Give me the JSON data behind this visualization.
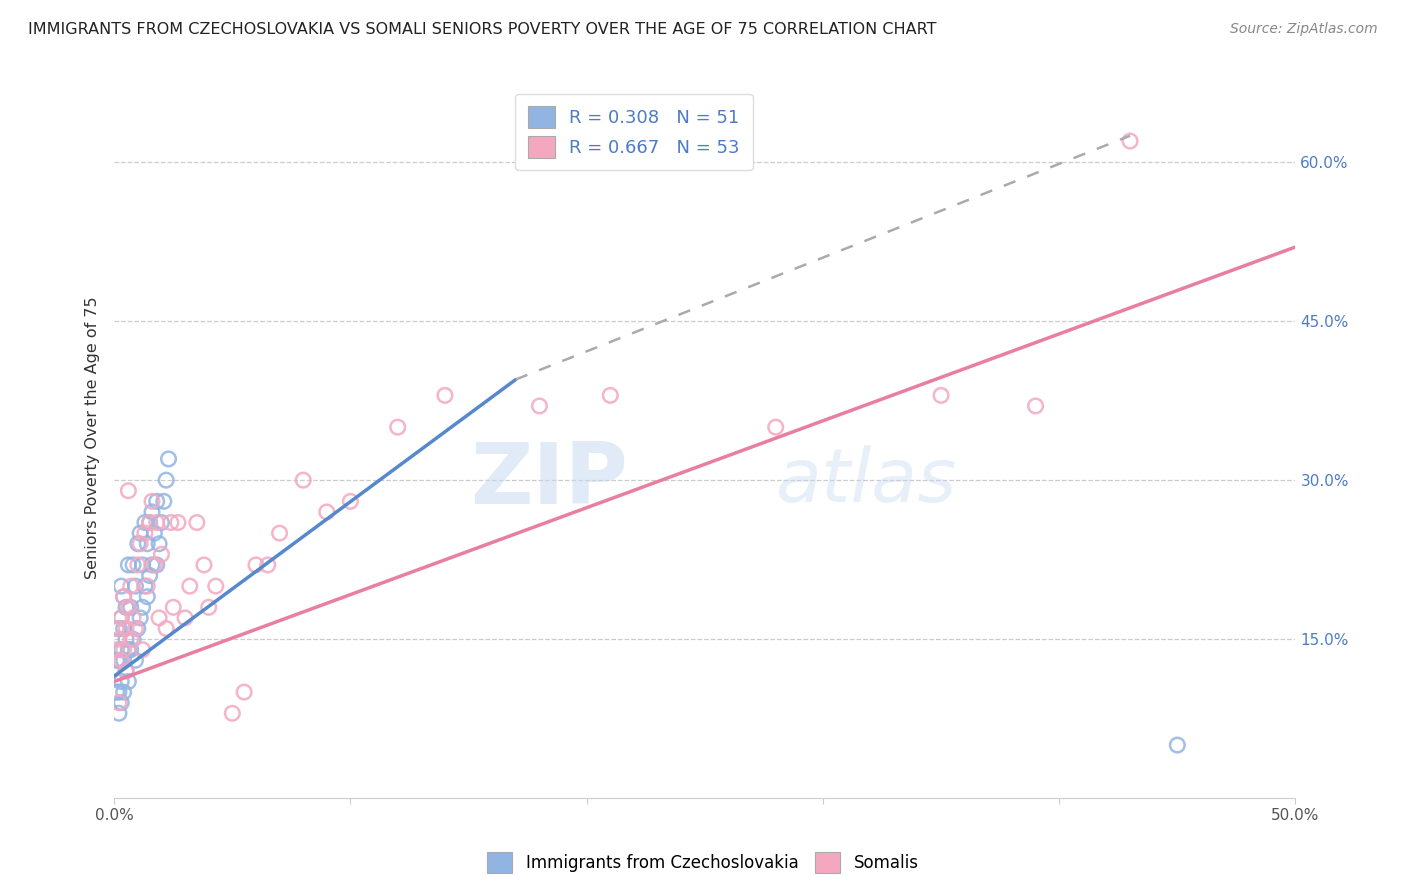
{
  "title": "IMMIGRANTS FROM CZECHOSLOVAKIA VS SOMALI SENIORS POVERTY OVER THE AGE OF 75 CORRELATION CHART",
  "source": "Source: ZipAtlas.com",
  "ylabel": "Seniors Poverty Over the Age of 75",
  "x_min": 0.0,
  "x_max": 0.5,
  "y_min": 0.0,
  "y_max": 0.68,
  "y_tick_labels_right": [
    "15.0%",
    "30.0%",
    "45.0%",
    "60.0%"
  ],
  "y_tick_vals_right": [
    0.15,
    0.3,
    0.45,
    0.6
  ],
  "watermark_zip": "ZIP",
  "watermark_atlas": "atlas",
  "legend_label1": "Immigrants from Czechoslovakia",
  "legend_label2": "Somalis",
  "color_blue": "#92b4e3",
  "color_pink": "#f4a8c0",
  "color_blue_line": "#5588cc",
  "color_pink_line": "#e87fa0",
  "color_blue_text": "#4d7cc7",
  "czech_x": [
    0.001,
    0.001,
    0.001,
    0.002,
    0.002,
    0.002,
    0.002,
    0.003,
    0.003,
    0.003,
    0.003,
    0.003,
    0.004,
    0.004,
    0.004,
    0.004,
    0.005,
    0.005,
    0.005,
    0.006,
    0.006,
    0.006,
    0.007,
    0.007,
    0.008,
    0.008,
    0.009,
    0.009,
    0.01,
    0.01,
    0.011,
    0.011,
    0.012,
    0.012,
    0.013,
    0.013,
    0.014,
    0.014,
    0.015,
    0.015,
    0.016,
    0.016,
    0.017,
    0.018,
    0.018,
    0.019,
    0.02,
    0.021,
    0.022,
    0.023,
    0.45
  ],
  "czech_y": [
    0.1,
    0.13,
    0.16,
    0.08,
    0.1,
    0.13,
    0.16,
    0.09,
    0.11,
    0.14,
    0.17,
    0.2,
    0.1,
    0.13,
    0.16,
    0.19,
    0.12,
    0.15,
    0.18,
    0.11,
    0.14,
    0.22,
    0.14,
    0.18,
    0.15,
    0.22,
    0.13,
    0.2,
    0.16,
    0.24,
    0.17,
    0.25,
    0.18,
    0.22,
    0.2,
    0.26,
    0.19,
    0.24,
    0.21,
    0.26,
    0.22,
    0.27,
    0.25,
    0.22,
    0.28,
    0.24,
    0.26,
    0.28,
    0.3,
    0.32,
    0.05
  ],
  "somali_x": [
    0.001,
    0.001,
    0.002,
    0.002,
    0.003,
    0.003,
    0.004,
    0.004,
    0.005,
    0.005,
    0.006,
    0.006,
    0.007,
    0.007,
    0.008,
    0.009,
    0.01,
    0.011,
    0.012,
    0.013,
    0.014,
    0.015,
    0.016,
    0.017,
    0.018,
    0.019,
    0.02,
    0.022,
    0.024,
    0.025,
    0.027,
    0.03,
    0.032,
    0.035,
    0.038,
    0.04,
    0.043,
    0.05,
    0.055,
    0.06,
    0.065,
    0.07,
    0.08,
    0.09,
    0.1,
    0.12,
    0.14,
    0.18,
    0.21,
    0.28,
    0.35,
    0.39,
    0.43
  ],
  "somali_y": [
    0.14,
    0.16,
    0.09,
    0.15,
    0.17,
    0.13,
    0.14,
    0.19,
    0.16,
    0.12,
    0.18,
    0.29,
    0.15,
    0.2,
    0.17,
    0.16,
    0.22,
    0.24,
    0.14,
    0.25,
    0.2,
    0.26,
    0.28,
    0.22,
    0.26,
    0.17,
    0.23,
    0.16,
    0.26,
    0.18,
    0.26,
    0.17,
    0.2,
    0.26,
    0.22,
    0.18,
    0.2,
    0.08,
    0.1,
    0.22,
    0.22,
    0.25,
    0.3,
    0.27,
    0.28,
    0.35,
    0.38,
    0.37,
    0.38,
    0.35,
    0.38,
    0.37,
    0.62
  ],
  "czech_line_x": [
    0.0,
    0.17
  ],
  "czech_line_y": [
    0.115,
    0.395
  ],
  "somali_line_x": [
    0.0,
    0.5
  ],
  "somali_line_y": [
    0.11,
    0.52
  ],
  "dashed_line_x": [
    0.17,
    0.43
  ],
  "dashed_line_y": [
    0.395,
    0.625
  ]
}
